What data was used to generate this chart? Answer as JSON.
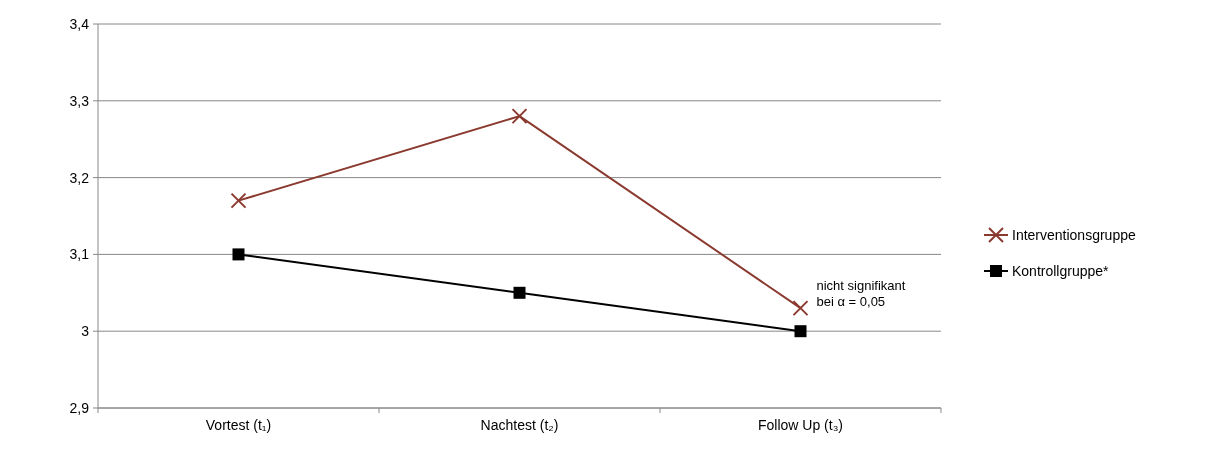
{
  "chart_data": {
    "type": "line",
    "categories": [
      "Vortest (t₁)",
      "Nachtest (t₂)",
      "Follow Up (t₃)"
    ],
    "series": [
      {
        "name": "Interventionsgruppe",
        "color": "#8b3a2f",
        "marker": "cross",
        "values": [
          3.17,
          3.28,
          3.03
        ]
      },
      {
        "name": "Kontrollgruppe*",
        "color": "#000000",
        "marker": "square",
        "values": [
          3.1,
          3.05,
          3.0
        ]
      }
    ],
    "ylim": [
      2.9,
      3.4
    ],
    "yticks": [
      {
        "value": 2.9,
        "label": "2,9"
      },
      {
        "value": 3,
        "label": "3"
      },
      {
        "value": 3.1,
        "label": "3,1"
      },
      {
        "value": 3.2,
        "label": "3,2"
      },
      {
        "value": 3.3,
        "label": "3,3"
      },
      {
        "value": 3.4,
        "label": "3,4"
      }
    ],
    "grid": "y",
    "legend": "right",
    "annotations": [
      "nicht signifikant\nbei α = 0,05"
    ]
  }
}
